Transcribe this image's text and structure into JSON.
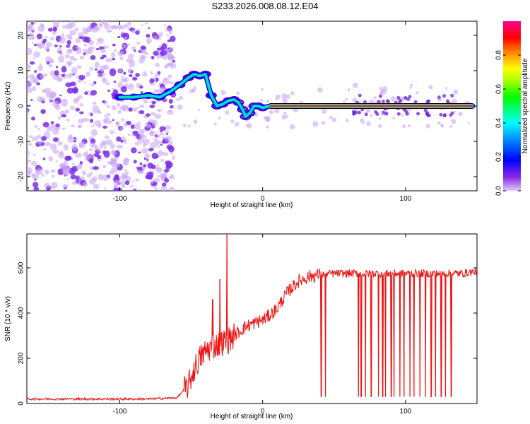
{
  "title": "S233.2026.008.08.12.E04",
  "chart_data": [
    {
      "type": "heatmap",
      "name": "spectrogram",
      "xlabel": "Height of straight line (km)",
      "ylabel": "Frequency (Hz)",
      "xlim": [
        -165,
        150
      ],
      "ylim": [
        -24,
        24
      ],
      "xticks": [
        -100,
        0,
        100
      ],
      "yticks": [
        -20,
        -10,
        0,
        10,
        20
      ],
      "colorbar": {
        "label": "Normalized spectral amplitude",
        "range": [
          0,
          1
        ],
        "ticks": [
          0.0,
          0.2,
          0.4,
          0.6,
          0.8
        ],
        "tick_labels": [
          "0.0",
          "0.2",
          "0.4",
          "0.6",
          "0.8"
        ],
        "colormap": [
          "#d8b4f8",
          "#6a00ff",
          "#0000ff",
          "#00ffff",
          "#00ff00",
          "#ffff00",
          "#ff8000",
          "#ff0000",
          "#ff00a0"
        ]
      },
      "carrier_track": [
        {
          "x": -100,
          "y": 2.5,
          "amp": 0.15
        },
        {
          "x": -90,
          "y": 2.5,
          "amp": 0.12
        },
        {
          "x": -80,
          "y": 3.0,
          "amp": 0.15
        },
        {
          "x": -72,
          "y": 2.5,
          "amp": 0.18
        },
        {
          "x": -65,
          "y": 4.0,
          "amp": 0.2
        },
        {
          "x": -58,
          "y": 6.0,
          "amp": 0.25
        },
        {
          "x": -52,
          "y": 8.0,
          "amp": 0.3
        },
        {
          "x": -48,
          "y": 9.0,
          "amp": 0.3
        },
        {
          "x": -44,
          "y": 8.5,
          "amp": 0.25
        },
        {
          "x": -40,
          "y": 9.0,
          "amp": 0.2
        },
        {
          "x": -36,
          "y": 3.0,
          "amp": 0.2
        },
        {
          "x": -32,
          "y": 0.0,
          "amp": 0.3
        },
        {
          "x": -28,
          "y": 0.5,
          "amp": 0.4
        },
        {
          "x": -24,
          "y": 1.5,
          "amp": 0.55
        },
        {
          "x": -20,
          "y": 1.8,
          "amp": 0.75
        },
        {
          "x": -17,
          "y": 1.0,
          "amp": 0.7
        },
        {
          "x": -14,
          "y": -1.0,
          "amp": 0.55
        },
        {
          "x": -12,
          "y": -3.0,
          "amp": 0.5
        },
        {
          "x": -9,
          "y": -2.0,
          "amp": 0.5
        },
        {
          "x": -6,
          "y": 0.0,
          "amp": 0.5
        },
        {
          "x": -3,
          "y": 0.0,
          "amp": 0.5
        },
        {
          "x": 0,
          "y": -0.5,
          "amp": 0.55
        },
        {
          "x": 5,
          "y": 0.0,
          "amp": 0.9
        },
        {
          "x": 30,
          "y": 0.0,
          "amp": 0.9
        },
        {
          "x": 60,
          "y": 0.0,
          "amp": 0.9
        },
        {
          "x": 90,
          "y": 0.0,
          "amp": 0.9
        },
        {
          "x": 120,
          "y": 0.0,
          "amp": 0.9
        },
        {
          "x": 147,
          "y": 0.0,
          "amp": 0.9
        }
      ]
    },
    {
      "type": "line",
      "name": "snr",
      "xlabel": "Height of straight line (km)",
      "ylabel": "SNR (10 * v/v)",
      "xlim": [
        -165,
        150
      ],
      "ylim": [
        0,
        750
      ],
      "xticks": [
        -100,
        0,
        100
      ],
      "yticks": [
        0,
        200,
        400,
        600
      ],
      "color": "#ee1111",
      "series": [
        {
          "name": "SNR",
          "x": [
            -165,
            -140,
            -120,
            -100,
            -80,
            -60,
            -52,
            -48,
            -44,
            -40,
            -36,
            -32,
            -28,
            -24,
            -20,
            -16,
            -12,
            -8,
            -4,
            0,
            5,
            10,
            15,
            20,
            25,
            30,
            35,
            40,
            50,
            60,
            70,
            80,
            90,
            100,
            110,
            120,
            130,
            140,
            150
          ],
          "values": [
            20,
            20,
            20,
            20,
            20,
            25,
            80,
            150,
            200,
            230,
            250,
            260,
            270,
            280,
            300,
            320,
            340,
            350,
            360,
            370,
            390,
            420,
            470,
            510,
            540,
            555,
            565,
            570,
            575,
            575,
            575,
            575,
            575,
            575,
            575,
            575,
            575,
            575,
            585
          ]
        }
      ],
      "spikes": [
        {
          "x": -25,
          "value": 760
        },
        {
          "x": -30,
          "value": 550
        },
        {
          "x": -35,
          "value": 460
        }
      ],
      "dropouts": [
        41,
        44,
        67,
        69,
        72,
        76,
        81,
        84,
        86,
        90,
        92,
        96,
        99,
        103,
        106,
        110,
        114,
        118,
        121,
        125,
        128,
        132
      ]
    }
  ]
}
